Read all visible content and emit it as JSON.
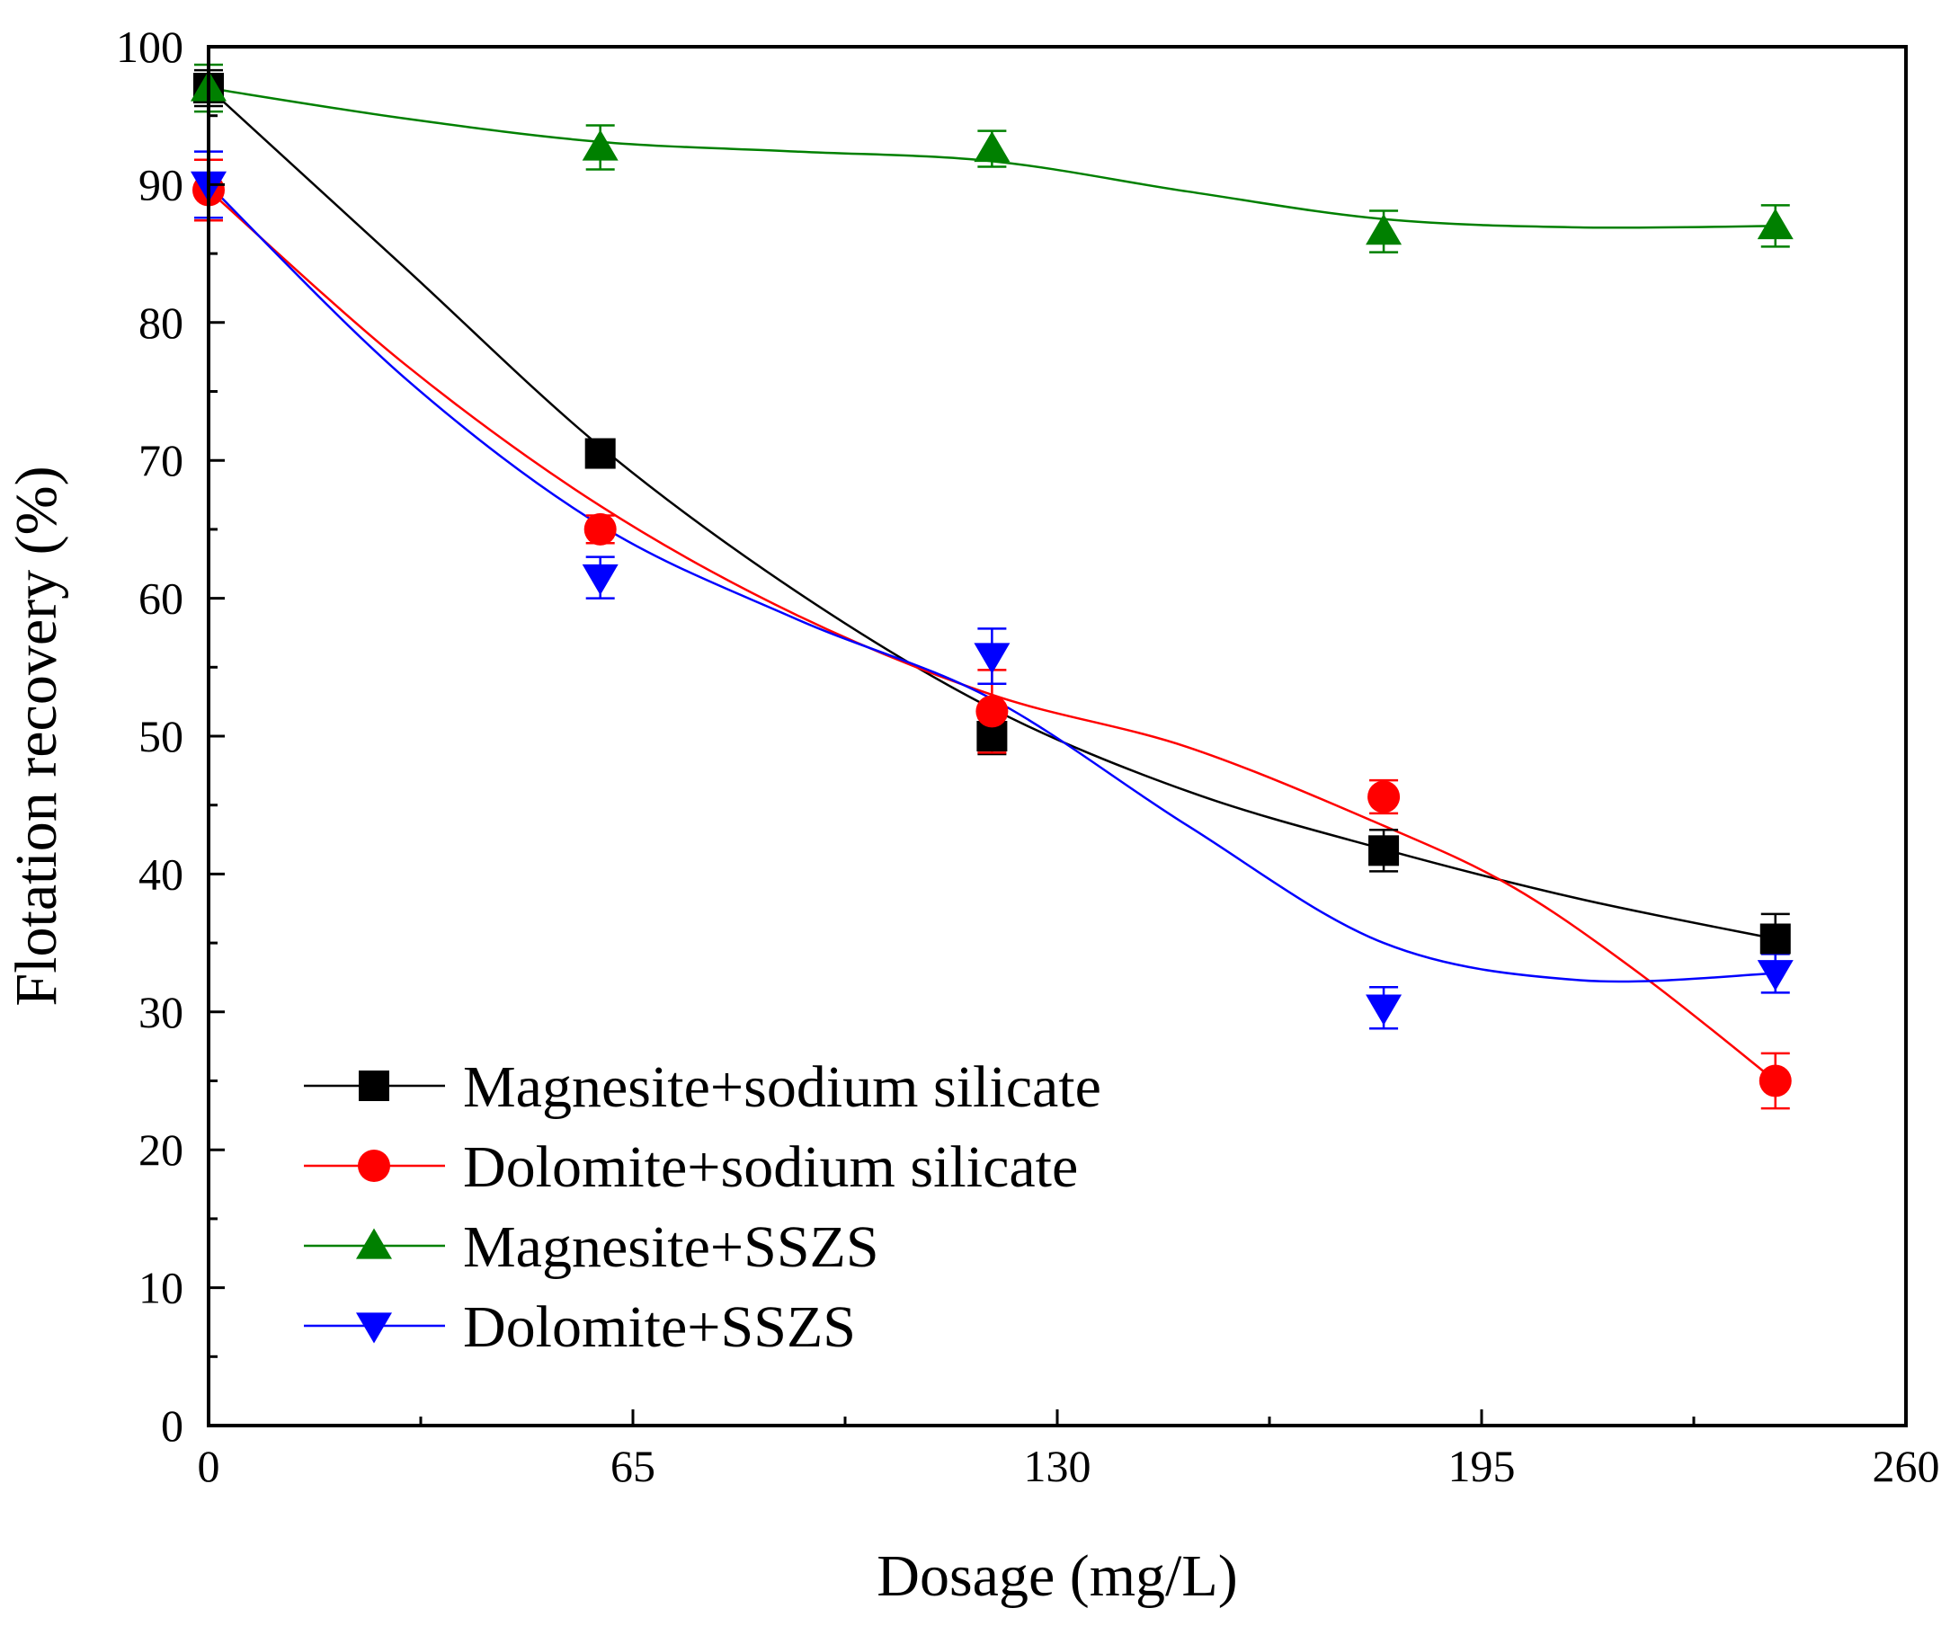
{
  "chart_data": {
    "type": "line",
    "title": "",
    "xlabel": "Dosage (mg/L)",
    "ylabel": "Flotation recovery (%)",
    "xlim": [
      0,
      260
    ],
    "ylim": [
      0,
      100
    ],
    "x_ticks": [
      0,
      65,
      130,
      195,
      260
    ],
    "y_ticks": [
      0,
      10,
      20,
      30,
      40,
      50,
      60,
      70,
      80,
      90,
      100
    ],
    "x_tick_labels": [
      "0",
      "65",
      "130",
      "195",
      "260"
    ],
    "y_tick_labels": [
      "0",
      "10",
      "20",
      "30",
      "40",
      "50",
      "60",
      "70",
      "80",
      "90",
      "100"
    ],
    "grid": false,
    "legend_position": "bottom-left",
    "x": [
      0,
      60,
      120,
      180,
      240
    ],
    "series": [
      {
        "name": "Magnesite+sodium silicate",
        "color": "#000000",
        "marker": "square",
        "values": [
          97.0,
          70.5,
          50.0,
          41.7,
          35.3
        ],
        "errors": [
          1.3,
          1.0,
          1.3,
          1.5,
          1.8
        ],
        "fit": [
          [
            0,
            97.0
          ],
          [
            30,
            84.0
          ],
          [
            60,
            71.0
          ],
          [
            90,
            60.5
          ],
          [
            120,
            52.0
          ],
          [
            150,
            46.0
          ],
          [
            180,
            41.8
          ],
          [
            210,
            38.2
          ],
          [
            240,
            35.3
          ]
        ]
      },
      {
        "name": "Dolomite+sodium silicate",
        "color": "#ff0000",
        "marker": "circle",
        "values": [
          89.6,
          65.0,
          51.8,
          45.6,
          25.0
        ],
        "errors": [
          2.2,
          1.0,
          3.0,
          1.2,
          2.0
        ],
        "fit": [
          [
            0,
            89.6
          ],
          [
            30,
            77.0
          ],
          [
            60,
            66.7
          ],
          [
            90,
            58.8
          ],
          [
            120,
            53.0
          ],
          [
            150,
            49.2
          ],
          [
            180,
            43.5
          ],
          [
            200,
            39.0
          ],
          [
            220,
            32.5
          ],
          [
            240,
            25.0
          ]
        ]
      },
      {
        "name": "Magnesite+SSZS",
        "color": "#008000",
        "marker": "triangle-up",
        "values": [
          97.0,
          92.7,
          92.6,
          86.6,
          87.0
        ],
        "errors": [
          1.7,
          1.6,
          1.3,
          1.5,
          1.5
        ],
        "fit": [
          [
            0,
            97.0
          ],
          [
            30,
            94.8
          ],
          [
            60,
            93.1
          ],
          [
            90,
            92.4
          ],
          [
            120,
            91.7
          ],
          [
            150,
            89.5
          ],
          [
            180,
            87.5
          ],
          [
            210,
            86.9
          ],
          [
            240,
            87.0
          ]
        ]
      },
      {
        "name": "Dolomite+SSZS",
        "color": "#0000ff",
        "marker": "triangle-down",
        "values": [
          90.0,
          61.5,
          55.8,
          30.3,
          32.8
        ],
        "errors": [
          2.4,
          1.5,
          2.0,
          1.5,
          1.4
        ],
        "fit": [
          [
            0,
            90.0
          ],
          [
            30,
            76.0
          ],
          [
            60,
            65.3
          ],
          [
            90,
            58.5
          ],
          [
            120,
            52.7
          ],
          [
            150,
            43.5
          ],
          [
            180,
            35.0
          ],
          [
            210,
            32.3
          ],
          [
            240,
            32.8
          ]
        ]
      }
    ]
  }
}
